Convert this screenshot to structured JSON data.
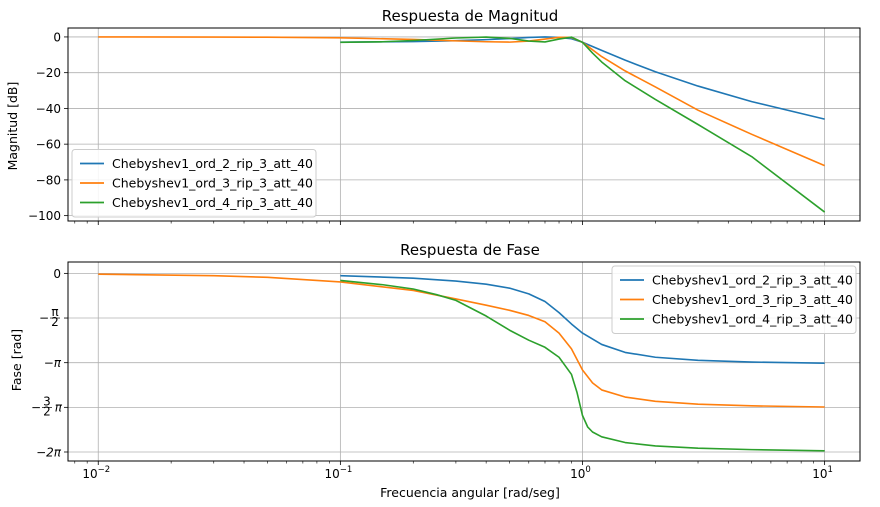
{
  "figure": {
    "xlabel": "Frecuencia angular [rad/seg]"
  },
  "chart_data": [
    {
      "type": "line",
      "title": "Respuesta de Magnitud",
      "xlabel": "",
      "ylabel": "Magnitud [dB]",
      "xscale": "log",
      "xlim": [
        0.0075,
        14
      ],
      "ylim": [
        -103,
        5
      ],
      "grid": true,
      "legend_position": "lower-left",
      "x_ticks": [
        {
          "label_base": "10",
          "label_exp": "−2",
          "value": 0.01
        },
        {
          "label_base": "10",
          "label_exp": "−1",
          "value": 0.1
        },
        {
          "label_base": "10",
          "label_exp": "0",
          "value": 1
        },
        {
          "label_base": "10",
          "label_exp": "1",
          "value": 10
        }
      ],
      "y_ticks": [
        {
          "label": "0",
          "value": 0
        },
        {
          "label": "−20",
          "value": -20
        },
        {
          "label": "−40",
          "value": -40
        },
        {
          "label": "−60",
          "value": -60
        },
        {
          "label": "−80",
          "value": -80
        },
        {
          "label": "−100",
          "value": -100
        }
      ],
      "series": [
        {
          "name": "Chebyshev1_ord_2_rip_3_att_40",
          "color": "#1f77b4",
          "x": [
            0.1,
            0.2,
            0.3,
            0.4,
            0.5,
            0.6,
            0.7,
            0.8,
            0.9,
            1.0,
            1.2,
            1.5,
            2,
            3,
            5,
            10
          ],
          "y": [
            -2.9,
            -2.6,
            -2.1,
            -1.5,
            -0.9,
            -0.3,
            0.0,
            -0.3,
            -1.0,
            -3.0,
            -7.5,
            -13.0,
            -19.5,
            -27.5,
            -36.2,
            -46
          ]
        },
        {
          "name": "Chebyshev1_ord_3_rip_3_att_40",
          "color": "#ff7f0e",
          "x": [
            0.01,
            0.03,
            0.05,
            0.1,
            0.2,
            0.3,
            0.4,
            0.5,
            0.6,
            0.7,
            0.8,
            0.9,
            1.0,
            1.2,
            1.5,
            2,
            3,
            5,
            10
          ],
          "y": [
            0.0,
            -0.05,
            -0.15,
            -0.5,
            -1.4,
            -2.2,
            -2.7,
            -2.9,
            -2.3,
            -1.2,
            -0.2,
            -0.3,
            -3.0,
            -11.0,
            -19.0,
            -28.0,
            -41.0,
            -54.5,
            -72
          ]
        },
        {
          "name": "Chebyshev1_ord_4_rip_3_att_40",
          "color": "#2ca02c",
          "x": [
            0.1,
            0.15,
            0.2,
            0.3,
            0.4,
            0.5,
            0.6,
            0.7,
            0.8,
            0.9,
            1.0,
            1.1,
            1.2,
            1.5,
            2,
            3,
            5,
            10
          ],
          "y": [
            -3.0,
            -2.7,
            -2.0,
            -0.6,
            -0.1,
            -0.8,
            -2.3,
            -2.8,
            -1.2,
            -0.1,
            -3.0,
            -9.0,
            -14.0,
            -24.5,
            -35.0,
            -49.0,
            -67.0,
            -98
          ]
        }
      ]
    },
    {
      "type": "line",
      "title": "Respuesta de Fase",
      "xlabel": "Frecuencia angular [rad/seg]",
      "ylabel": "Fase [rad]",
      "xscale": "log",
      "xlim": [
        0.0075,
        14
      ],
      "ylim": [
        -6.6,
        0.4
      ],
      "grid": true,
      "legend_position": "upper-right",
      "x_ticks": [
        {
          "label_base": "10",
          "label_exp": "−2",
          "value": 0.01
        },
        {
          "label_base": "10",
          "label_exp": "−1",
          "value": 0.1
        },
        {
          "label_base": "10",
          "label_exp": "0",
          "value": 1
        },
        {
          "label_base": "10",
          "label_exp": "1",
          "value": 10
        }
      ],
      "y_ticks": [
        {
          "label": "0",
          "value": 0
        },
        {
          "label": "−π/2",
          "value": -1.5708
        },
        {
          "label": "−π",
          "value": -3.1416
        },
        {
          "label": "−3/2 π",
          "value": -4.7124
        },
        {
          "label": "−2π",
          "value": -6.2832
        }
      ],
      "series": [
        {
          "name": "Chebyshev1_ord_2_rip_3_att_40",
          "color": "#1f77b4",
          "x": [
            0.1,
            0.2,
            0.3,
            0.4,
            0.5,
            0.6,
            0.7,
            0.8,
            0.9,
            1.0,
            1.2,
            1.5,
            2,
            3,
            5,
            10
          ],
          "y": [
            -0.08,
            -0.17,
            -0.27,
            -0.38,
            -0.52,
            -0.72,
            -0.99,
            -1.38,
            -1.78,
            -2.1,
            -2.5,
            -2.78,
            -2.95,
            -3.06,
            -3.12,
            -3.16
          ]
        },
        {
          "name": "Chebyshev1_ord_3_rip_3_att_40",
          "color": "#ff7f0e",
          "x": [
            0.01,
            0.03,
            0.05,
            0.1,
            0.2,
            0.3,
            0.4,
            0.5,
            0.6,
            0.7,
            0.8,
            0.9,
            1.0,
            1.1,
            1.2,
            1.5,
            2,
            3,
            5,
            10
          ],
          "y": [
            -0.03,
            -0.08,
            -0.14,
            -0.3,
            -0.6,
            -0.9,
            -1.12,
            -1.3,
            -1.48,
            -1.7,
            -2.1,
            -2.65,
            -3.4,
            -3.85,
            -4.1,
            -4.35,
            -4.5,
            -4.6,
            -4.66,
            -4.7
          ]
        },
        {
          "name": "Chebyshev1_ord_4_rip_3_att_40",
          "color": "#2ca02c",
          "x": [
            0.1,
            0.15,
            0.2,
            0.25,
            0.3,
            0.4,
            0.5,
            0.6,
            0.7,
            0.8,
            0.9,
            0.95,
            1.0,
            1.05,
            1.1,
            1.2,
            1.5,
            2,
            3,
            5,
            10
          ],
          "y": [
            -0.25,
            -0.4,
            -0.55,
            -0.75,
            -0.95,
            -1.5,
            -2.0,
            -2.35,
            -2.6,
            -2.95,
            -3.55,
            -4.2,
            -5.0,
            -5.4,
            -5.58,
            -5.75,
            -5.95,
            -6.07,
            -6.15,
            -6.2,
            -6.24
          ]
        }
      ]
    }
  ]
}
